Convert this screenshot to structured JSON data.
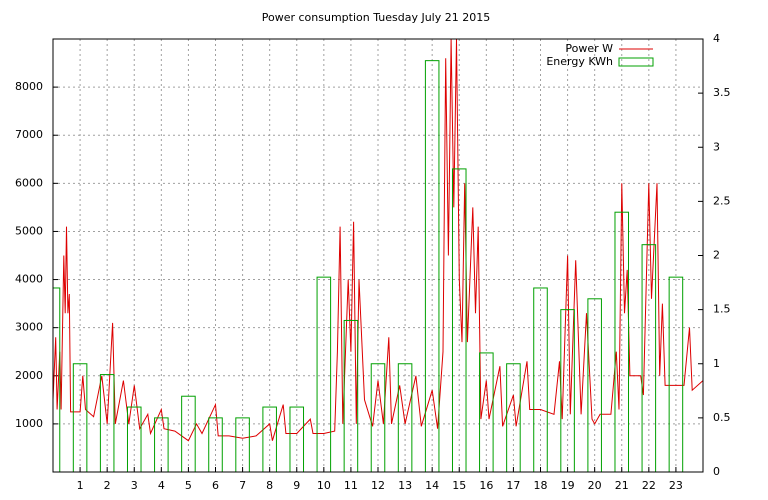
{
  "chart_data": {
    "type": "line",
    "title": "Power consumption Tuesday July 21 2015",
    "xlim": [
      0,
      24
    ],
    "xticks": [
      1,
      2,
      3,
      4,
      5,
      6,
      7,
      8,
      9,
      10,
      11,
      12,
      13,
      14,
      15,
      16,
      17,
      18,
      19,
      20,
      21,
      22,
      23
    ],
    "ylim": [
      0,
      9000
    ],
    "yticks": [
      1000,
      2000,
      3000,
      4000,
      5000,
      6000,
      7000,
      8000
    ],
    "y2lim": [
      0,
      4
    ],
    "y2ticks": [
      0,
      0.5,
      1,
      1.5,
      2,
      2.5,
      3,
      3.5,
      4
    ],
    "grid": true,
    "legend": "top-right",
    "series": [
      {
        "name": "Power W",
        "color": "#dd0000",
        "type": "line",
        "x": [
          0,
          0.1,
          0.15,
          0.25,
          0.3,
          0.4,
          0.45,
          0.5,
          0.55,
          0.6,
          0.65,
          1.0,
          1.1,
          1.2,
          1.5,
          1.8,
          2.0,
          2.2,
          2.3,
          2.6,
          2.8,
          3.0,
          3.2,
          3.5,
          3.6,
          4.0,
          4.1,
          4.5,
          5.0,
          5.3,
          5.5,
          6.0,
          6.1,
          6.5,
          7.0,
          7.5,
          8.0,
          8.1,
          8.5,
          8.6,
          9.0,
          9.5,
          9.6,
          10.0,
          10.4,
          10.5,
          10.6,
          10.7,
          10.9,
          11.0,
          11.1,
          11.2,
          11.3,
          11.5,
          11.8,
          12.0,
          12.2,
          12.4,
          12.5,
          12.8,
          13.0,
          13.4,
          13.6,
          14.0,
          14.2,
          14.4,
          14.5,
          14.6,
          14.7,
          14.8,
          14.9,
          15.0,
          15.1,
          15.2,
          15.3,
          15.5,
          15.6,
          15.7,
          15.8,
          16.0,
          16.1,
          16.5,
          16.6,
          17.0,
          17.1,
          17.5,
          17.6,
          18.0,
          18.5,
          18.7,
          18.8,
          19.0,
          19.1,
          19.3,
          19.5,
          19.7,
          19.9,
          20.0,
          20.2,
          20.6,
          20.8,
          20.9,
          21.0,
          21.1,
          21.2,
          21.3,
          21.7,
          21.8,
          22.0,
          22.1,
          22.3,
          22.4,
          22.5,
          22.6,
          23.0,
          23.3,
          23.5,
          23.6,
          24.0
        ],
        "values": [
          1500,
          2800,
          1300,
          2500,
          1300,
          4500,
          3300,
          5100,
          3300,
          3700,
          1250,
          1250,
          2000,
          1300,
          1150,
          2000,
          1000,
          3100,
          1000,
          1900,
          1000,
          1800,
          900,
          1200,
          800,
          1300,
          900,
          850,
          650,
          1000,
          800,
          1400,
          750,
          750,
          700,
          750,
          1000,
          650,
          1400,
          800,
          800,
          1100,
          800,
          800,
          850,
          2500,
          5100,
          1000,
          4000,
          2500,
          5200,
          1000,
          4000,
          1500,
          950,
          1900,
          1000,
          2800,
          1000,
          1800,
          1000,
          2000,
          950,
          1700,
          900,
          2500,
          8600,
          4500,
          9000,
          5500,
          9000,
          4000,
          2700,
          6000,
          2700,
          5500,
          3300,
          5100,
          1100,
          1900,
          1100,
          2200,
          950,
          1600,
          950,
          2300,
          1300,
          1300,
          1200,
          2300,
          1100,
          4500,
          1200,
          4400,
          1200,
          3300,
          1100,
          1000,
          1200,
          1200,
          2500,
          1300,
          6000,
          3300,
          4200,
          2000,
          2000,
          1600,
          6000,
          3600,
          6000,
          2000,
          3500,
          1800,
          1800,
          1800,
          3000,
          1700,
          1900
        ]
      },
      {
        "name": "Energy KWh",
        "color": "#00a000",
        "type": "boxes",
        "axis": "y2",
        "x": [
          0,
          1,
          2,
          3,
          4,
          5,
          6,
          7,
          8,
          9,
          10,
          11,
          12,
          13,
          14,
          15,
          16,
          17,
          18,
          19,
          20,
          21,
          22,
          23
        ],
        "values": [
          1.7,
          1.0,
          0.9,
          0.6,
          0.5,
          0.7,
          0.5,
          0.5,
          0.6,
          0.6,
          1.8,
          1.4,
          1.0,
          1.0,
          3.8,
          2.8,
          1.1,
          1.0,
          1.7,
          1.5,
          1.6,
          2.4,
          2.1,
          1.8
        ]
      }
    ]
  }
}
